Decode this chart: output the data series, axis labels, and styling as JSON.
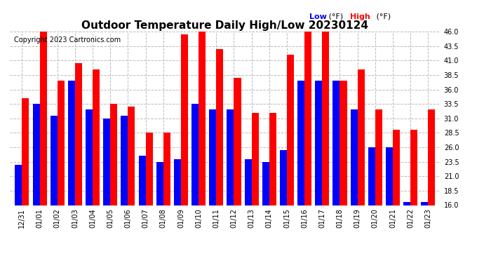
{
  "title": "Outdoor Temperature Daily High/Low 20230124",
  "copyright": "Copyright 2023 Cartronics.com",
  "dates": [
    "12/31",
    "01/01",
    "01/02",
    "01/03",
    "01/04",
    "01/05",
    "01/06",
    "01/07",
    "01/08",
    "01/09",
    "01/10",
    "01/11",
    "01/12",
    "01/13",
    "01/14",
    "01/15",
    "01/16",
    "01/17",
    "01/18",
    "01/19",
    "01/20",
    "01/21",
    "01/22",
    "01/23"
  ],
  "high": [
    34.5,
    46.0,
    37.5,
    40.5,
    39.5,
    33.5,
    33.0,
    28.5,
    28.5,
    45.5,
    46.0,
    43.0,
    38.0,
    32.0,
    32.0,
    42.0,
    46.0,
    46.0,
    37.5,
    39.5,
    32.5,
    29.0,
    29.0,
    32.5
  ],
  "low": [
    23.0,
    33.5,
    31.5,
    37.5,
    32.5,
    31.0,
    31.5,
    24.5,
    23.5,
    24.0,
    33.5,
    32.5,
    32.5,
    24.0,
    23.5,
    25.5,
    37.5,
    37.5,
    37.5,
    32.5,
    26.0,
    26.0,
    16.5,
    16.5
  ],
  "ylim": [
    16.0,
    46.0
  ],
  "yticks": [
    16.0,
    18.5,
    21.0,
    23.5,
    26.0,
    28.5,
    31.0,
    33.5,
    36.0,
    38.5,
    41.0,
    43.5,
    46.0
  ],
  "low_color": "#0000ff",
  "high_color": "#ff0000",
  "background_color": "#ffffff",
  "grid_color": "#bbbbbb",
  "title_fontsize": 11,
  "copyright_fontsize": 7,
  "tick_fontsize": 7,
  "legend_fontsize": 8,
  "bar_width": 0.4,
  "ymin": 16.0
}
